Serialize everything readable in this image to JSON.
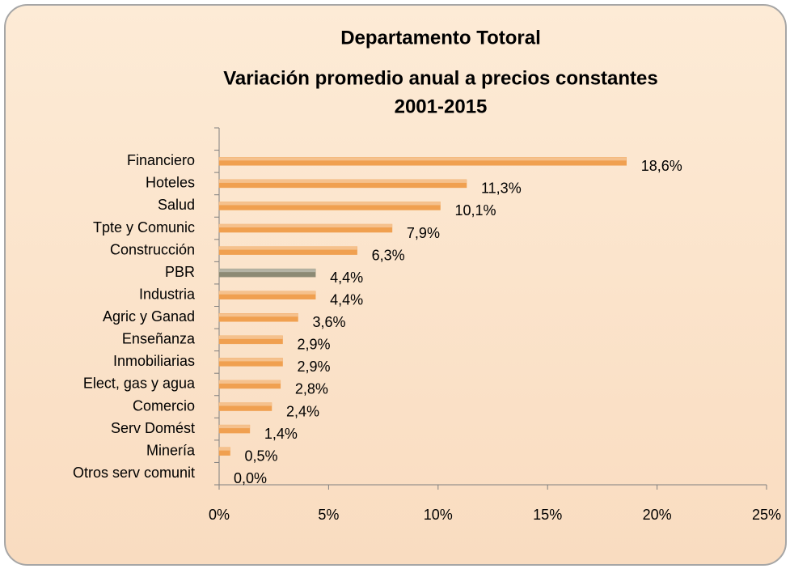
{
  "chart_data": {
    "type": "bar",
    "orientation": "horizontal",
    "title": [
      "Departamento Totoral",
      "Variación promedio anual a precios constantes",
      "2001-2015"
    ],
    "categories": [
      null,
      "Financiero",
      "Hoteles",
      "Salud",
      "Tpte y Comunic",
      "Construcción",
      "PBR",
      "Industria",
      "Agric y Ganad",
      "Enseñanza",
      "Inmobiliarias",
      "Elect, gas y agua",
      "Comercio",
      "Serv Domést",
      "Minería",
      "Otros serv comunit"
    ],
    "values": [
      null,
      18.6,
      11.3,
      10.1,
      7.9,
      6.3,
      4.4,
      4.4,
      3.6,
      2.9,
      2.9,
      2.8,
      2.4,
      1.4,
      0.5,
      0.0
    ],
    "value_labels": [
      null,
      "18,6%",
      "11,3%",
      "10,1%",
      "7,9%",
      "6,3%",
      "4,4%",
      "4,4%",
      "3,6%",
      "2,9%",
      "2,9%",
      "2,8%",
      "2,4%",
      "1,4%",
      "0,5%",
      "0,0%"
    ],
    "colors": [
      null,
      "#f0a050",
      "#f0a050",
      "#f0a050",
      "#f0a050",
      "#f0a050",
      "#8c8a74",
      "#f0a050",
      "#f0a050",
      "#f0a050",
      "#f0a050",
      "#f0a050",
      "#f0a050",
      "#f0a050",
      "#f0a050",
      "#f0a050"
    ],
    "xlim": [
      0,
      25
    ],
    "xticks": [
      {
        "value": 0,
        "label": "0%"
      },
      {
        "value": 5,
        "label": "5%"
      },
      {
        "value": 10,
        "label": "10%"
      },
      {
        "value": 15,
        "label": "15%"
      },
      {
        "value": 20,
        "label": "20%"
      },
      {
        "value": 25,
        "label": "25%"
      }
    ],
    "grid": false
  }
}
